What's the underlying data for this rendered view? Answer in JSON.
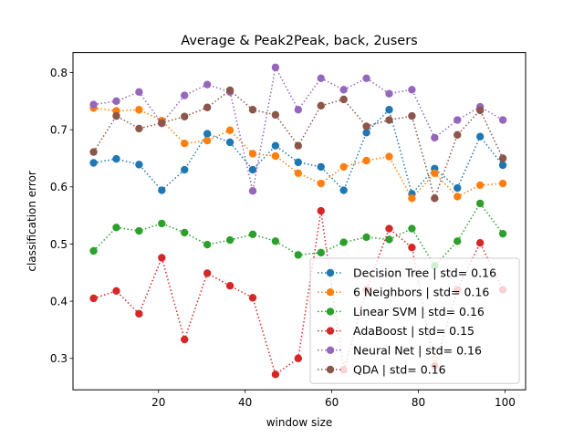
{
  "chart_data": {
    "type": "line",
    "title": "Average & Peak2Peak, back, 2users",
    "xlabel": "window size",
    "ylabel": "classification error",
    "xlim": [
      0.25,
      104.75
    ],
    "ylim": [
      0.245,
      0.835
    ],
    "xticks": [
      20,
      40,
      60,
      80,
      100
    ],
    "yticks": [
      0.3,
      0.4,
      0.5,
      0.6,
      0.7,
      0.8
    ],
    "ytick_labels": [
      "0.3",
      "0.4",
      "0.5",
      "0.6",
      "0.7",
      "0.8"
    ],
    "line_style": "dotted",
    "markers": true,
    "grid": false,
    "legend_position": "lower-right",
    "x": [
      5,
      10.25,
      15.5,
      20.75,
      26,
      31.25,
      36.5,
      41.75,
      47,
      52.25,
      57.5,
      62.75,
      68,
      73.25,
      78.5,
      83.75,
      89,
      94.25,
      99.5
    ],
    "series": [
      {
        "name": "Decision Tree | std= 0.16",
        "color": "#1f77b4",
        "values": [
          0.642,
          0.649,
          0.639,
          0.594,
          0.63,
          0.693,
          0.678,
          0.63,
          0.672,
          0.643,
          0.635,
          0.594,
          0.695,
          0.735,
          0.588,
          0.632,
          0.598,
          0.688,
          0.638
        ]
      },
      {
        "name": "6 Neighbors | std= 0.16",
        "color": "#ff7f0e",
        "values": [
          0.738,
          0.733,
          0.735,
          0.716,
          0.676,
          0.681,
          0.699,
          0.658,
          0.654,
          0.624,
          0.606,
          0.635,
          0.646,
          0.653,
          0.58,
          0.624,
          0.583,
          0.603,
          0.606
        ]
      },
      {
        "name": "Linear SVM | std= 0.16",
        "color": "#2ca02c",
        "values": [
          0.488,
          0.529,
          0.523,
          0.536,
          0.52,
          0.499,
          0.507,
          0.517,
          0.505,
          0.481,
          0.485,
          0.503,
          0.512,
          0.508,
          0.527,
          0.462,
          0.505,
          0.571,
          0.518
        ]
      },
      {
        "name": "AdaBoost | std= 0.15",
        "color": "#d62728",
        "values": [
          0.405,
          0.418,
          0.378,
          0.476,
          0.333,
          0.449,
          0.427,
          0.406,
          0.272,
          0.3,
          0.558,
          0.28,
          0.42,
          0.527,
          0.494,
          0.287,
          0.42,
          0.502,
          0.42
        ]
      },
      {
        "name": "Neural Net | std= 0.16",
        "color": "#9467bd",
        "values": [
          0.744,
          0.75,
          0.766,
          0.711,
          0.76,
          0.779,
          0.766,
          0.593,
          0.809,
          0.735,
          0.79,
          0.77,
          0.79,
          0.763,
          0.77,
          0.686,
          0.717,
          0.74,
          0.717
        ]
      },
      {
        "name": "QDA | std= 0.16",
        "color": "#8c564b",
        "values": [
          0.661,
          0.724,
          0.702,
          0.712,
          0.723,
          0.739,
          0.769,
          0.735,
          0.726,
          0.672,
          0.742,
          0.753,
          0.706,
          0.717,
          0.724,
          0.58,
          0.691,
          0.734,
          0.65
        ]
      }
    ]
  }
}
